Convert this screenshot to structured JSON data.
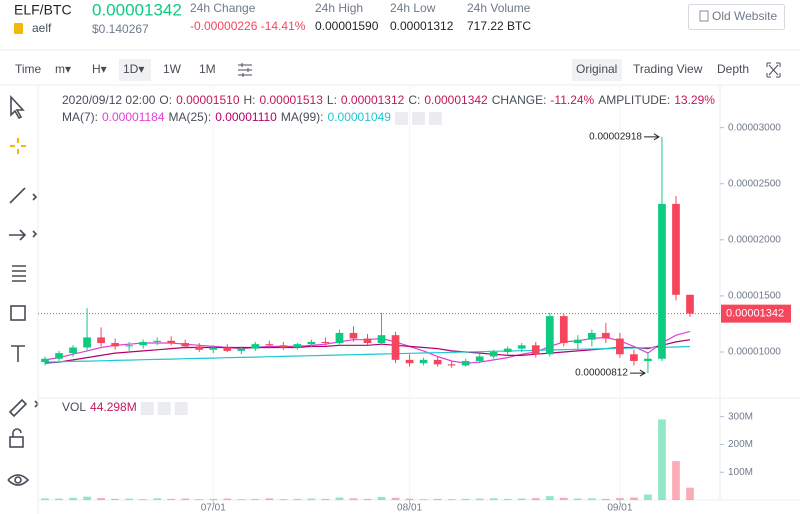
{
  "header": {
    "pair": "ELF/BTC",
    "price": "0.00001342",
    "usd": "$0.140267",
    "name": "aelf",
    "stats": [
      {
        "label": "24h Change",
        "value": "-0.00000226 -14.41%"
      },
      {
        "label": "24h High",
        "value": "0.00001590"
      },
      {
        "label": "24h Low",
        "value": "0.00001312"
      },
      {
        "label": "24h Volume",
        "value": "717.22 BTC"
      }
    ],
    "old_website": "Old Website"
  },
  "toolbar": {
    "intervals": [
      "Time",
      "m▾",
      "H▾",
      "1D▾",
      "1W",
      "1M"
    ],
    "views": [
      "Original",
      "Trading View",
      "Depth"
    ]
  },
  "chart_data": {
    "type": "candlestick",
    "info": [
      "2020/09/12 02:00",
      "O:",
      "0.00001510",
      "H:",
      "0.00001513",
      "L:",
      "0.00001312",
      "C:",
      "0.00001342",
      "CHANGE:",
      "-11.24%",
      "AMPLITUDE:",
      "13.29%"
    ],
    "categories": [
      null,
      null,
      null,
      null,
      null,
      null,
      null,
      null,
      null,
      null,
      null,
      null,
      "07/01",
      null,
      null,
      null,
      null,
      null,
      null,
      null,
      null,
      null,
      null,
      null,
      null,
      null,
      "08/01",
      null,
      null,
      null,
      null,
      null,
      null,
      null,
      null,
      null,
      null,
      null,
      null,
      null,
      null,
      "09/01",
      null,
      null,
      null,
      null,
      null
    ],
    "open": [
      9.1e-06,
      9.4e-06,
      9.9e-06,
      1.04e-05,
      1.13e-05,
      1.08e-05,
      1.05e-05,
      1.06e-05,
      1.09e-05,
      1.1e-05,
      1.08e-05,
      1.05e-05,
      1.02e-05,
      1.04e-05,
      1.01e-05,
      1.03e-05,
      1.07e-05,
      1.06e-05,
      1.04e-05,
      1.07e-05,
      1.09e-05,
      1.08e-05,
      1.17e-05,
      1.12e-05,
      1.08e-05,
      1.15e-05,
      9.3e-06,
      9e-06,
      9.3e-06,
      8.9e-06,
      8.8e-06,
      9.2e-06,
      9.6e-06,
      1e-05,
      1.03e-05,
      1.06e-05,
      9.8e-06,
      1.32e-05,
      1.08e-05,
      1.11e-05,
      1.17e-05,
      1.12e-05,
      9.8e-06,
      9.2e-06,
      9.4e-06,
      2.32e-05,
      1.51e-05
    ],
    "high": [
      9.6e-06,
      1.01e-05,
      1.06e-05,
      1.39e-05,
      1.22e-05,
      1.12e-05,
      1.09e-05,
      1.11e-05,
      1.13e-05,
      1.14e-05,
      1.11e-05,
      1.08e-05,
      1.06e-05,
      1.07e-05,
      1.05e-05,
      1.09e-05,
      1.1e-05,
      1.09e-05,
      1.08e-05,
      1.11e-05,
      1.13e-05,
      1.2e-05,
      1.23e-05,
      1.16e-05,
      1.35e-05,
      1.18e-05,
      9.8e-06,
      9.5e-06,
      9.6e-06,
      9.2e-06,
      9.4e-06,
      9.8e-06,
      1.02e-05,
      1.05e-05,
      1.08e-05,
      1.09e-05,
      1.35e-05,
      1.34e-05,
      1.15e-05,
      1.2e-05,
      1.26e-05,
      1.17e-05,
      1.02e-05,
      1e-05,
      2.918e-05,
      2.39e-05,
      1.513e-05
    ],
    "low": [
      8.8e-06,
      9.2e-06,
      9.6e-06,
      1.01e-05,
      1.05e-05,
      1.02e-05,
      1.01e-05,
      1.03e-05,
      1.06e-05,
      1.06e-05,
      1.03e-05,
      1e-05,
      9.9e-06,
      1e-05,
      9.8e-06,
      1.01e-05,
      1.03e-05,
      1.02e-05,
      1.02e-05,
      1.04e-05,
      1.06e-05,
      1.06e-05,
      1.09e-05,
      1.06e-05,
      1.06e-05,
      9e-06,
      8.7e-06,
      8.8e-06,
      8.7e-06,
      8.6e-06,
      8.7e-06,
      9e-06,
      9.4e-06,
      9.7e-06,
      1e-05,
      9.5e-06,
      9.6e-06,
      1.05e-05,
      1.02e-05,
      1.05e-05,
      1.08e-05,
      9.5e-06,
      8.8e-06,
      8.12e-06,
      9.2e-06,
      1.46e-05,
      1.312e-05
    ],
    "close": [
      9.4e-06,
      9.9e-06,
      1.04e-05,
      1.13e-05,
      1.08e-05,
      1.05e-05,
      1.06e-05,
      1.09e-05,
      1.1e-05,
      1.08e-05,
      1.05e-05,
      1.02e-05,
      1.04e-05,
      1.01e-05,
      1.03e-05,
      1.07e-05,
      1.06e-05,
      1.04e-05,
      1.07e-05,
      1.09e-05,
      1.08e-05,
      1.17e-05,
      1.12e-05,
      1.08e-05,
      1.15e-05,
      9.3e-06,
      9e-06,
      9.3e-06,
      8.9e-06,
      8.8e-06,
      9.2e-06,
      9.6e-06,
      1e-05,
      1.03e-05,
      1.06e-05,
      9.8e-06,
      1.32e-05,
      1.08e-05,
      1.11e-05,
      1.17e-05,
      1.12e-05,
      9.8e-06,
      9.2e-06,
      9.4e-06,
      2.32e-05,
      1.51e-05,
      1.342e-05
    ],
    "up_color": "#0ecb81",
    "down_color": "#f6465d",
    "series": [
      {
        "name": "MA(7):",
        "color": "#e03fd8",
        "value_label": "0.00001184",
        "values": [
          9.3e-06,
          9.5e-06,
          9.8e-06,
          1.01e-05,
          1.04e-05,
          1.06e-05,
          1.07e-05,
          1.08e-05,
          1.08e-05,
          1.08e-05,
          1.07e-05,
          1.06e-05,
          1.05e-05,
          1.04e-05,
          1.03e-05,
          1.04e-05,
          1.05e-05,
          1.05e-05,
          1.05e-05,
          1.06e-05,
          1.07e-05,
          1.09e-05,
          1.11e-05,
          1.11e-05,
          1.12e-05,
          1.09e-05,
          1.05e-05,
          1.01e-05,
          9.6e-06,
          9.2e-06,
          9e-06,
          9.1e-06,
          9.3e-06,
          9.5e-06,
          9.8e-06,
          1e-05,
          1.05e-05,
          1.09e-05,
          1.1e-05,
          1.12e-05,
          1.13e-05,
          1.1e-05,
          1.05e-05,
          9.9e-06,
          1.08e-05,
          1.15e-05,
          1.184e-05
        ]
      },
      {
        "name": "MA(25):",
        "color": "#b4006e",
        "value_label": "0.00001110",
        "values": [
          9e-06,
          9.1e-06,
          9.3e-06,
          9.5e-06,
          9.7e-06,
          9.9e-06,
          1e-05,
          1.01e-05,
          1.02e-05,
          1.03e-05,
          1.04e-05,
          1.04e-05,
          1.04e-05,
          1.04e-05,
          1.04e-05,
          1.04e-05,
          1.04e-05,
          1.04e-05,
          1.04e-05,
          1.05e-05,
          1.05e-05,
          1.06e-05,
          1.06e-05,
          1.06e-05,
          1.07e-05,
          1.06e-05,
          1.05e-05,
          1.04e-05,
          1.03e-05,
          1.01e-05,
          1e-05,
          9.9e-06,
          9.8e-06,
          9.7e-06,
          9.7e-06,
          9.8e-06,
          9.9e-06,
          1e-05,
          1.01e-05,
          1.02e-05,
          1.03e-05,
          1.04e-05,
          1.04e-05,
          1.03e-05,
          1.06e-05,
          1.09e-05,
          1.11e-05
        ]
      },
      {
        "name": "MA(99):",
        "color": "#1fc7d4",
        "value_label": "0.00001049",
        "values": [
          9.1e-06,
          9.13e-06,
          9.16e-06,
          9.19e-06,
          9.22e-06,
          9.25e-06,
          9.28e-06,
          9.31e-06,
          9.34e-06,
          9.37e-06,
          9.4e-06,
          9.43e-06,
          9.46e-06,
          9.49e-06,
          9.52e-06,
          9.55e-06,
          9.58e-06,
          9.61e-06,
          9.64e-06,
          9.67e-06,
          9.7e-06,
          9.73e-06,
          9.76e-06,
          9.79e-06,
          9.82e-06,
          9.85e-06,
          9.88e-06,
          9.91e-06,
          9.94e-06,
          9.97e-06,
          1e-05,
          1.003e-05,
          1.006e-05,
          1.009e-05,
          1.012e-05,
          1.015e-05,
          1.018e-05,
          1.021e-05,
          1.024e-05,
          1.027e-05,
          1.03e-05,
          1.033e-05,
          1.036e-05,
          1.039e-05,
          1.042e-05,
          1.045e-05,
          1.049e-05
        ]
      }
    ],
    "ylim": [
      5.9e-06,
      3.38e-05
    ],
    "yticks": [
      {
        "value": 1e-05,
        "label": "0.00001000"
      },
      {
        "value": 1.5e-05,
        "label": "0.00001500"
      },
      {
        "value": 2e-05,
        "label": "0.00002000"
      },
      {
        "value": 2.5e-05,
        "label": "0.00002500"
      },
      {
        "value": 3e-05,
        "label": "0.00003000"
      }
    ],
    "last_price": {
      "value": 1.342e-05,
      "label": "0.00001342"
    },
    "max_marker": {
      "value": 2.918e-05,
      "label": "0.00002918"
    },
    "min_marker": {
      "value": 8.12e-06,
      "label": "0.00000812"
    },
    "volume": {
      "name": "VOL",
      "value_label": "44.298M",
      "values": [
        6000000,
        5000000,
        8000000,
        12000000,
        7000000,
        4000000,
        5000000,
        3000000,
        6000000,
        4000000,
        5000000,
        3000000,
        4000000,
        5000000,
        3000000,
        4000000,
        6000000,
        3000000,
        4000000,
        5000000,
        4000000,
        9000000,
        6000000,
        4000000,
        11000000,
        8000000,
        5000000,
        3000000,
        4000000,
        3000000,
        4000000,
        5000000,
        6000000,
        4000000,
        5000000,
        7000000,
        14000000,
        8000000,
        5000000,
        6000000,
        4000000,
        7000000,
        9000000,
        20000000,
        290000000,
        140000000,
        44298000
      ],
      "ylim": [
        0,
        360000000
      ],
      "yticks": [
        {
          "value": 100000000,
          "label": "100M"
        },
        {
          "value": 200000000,
          "label": "200M"
        },
        {
          "value": 300000000,
          "label": "300M"
        }
      ]
    }
  }
}
